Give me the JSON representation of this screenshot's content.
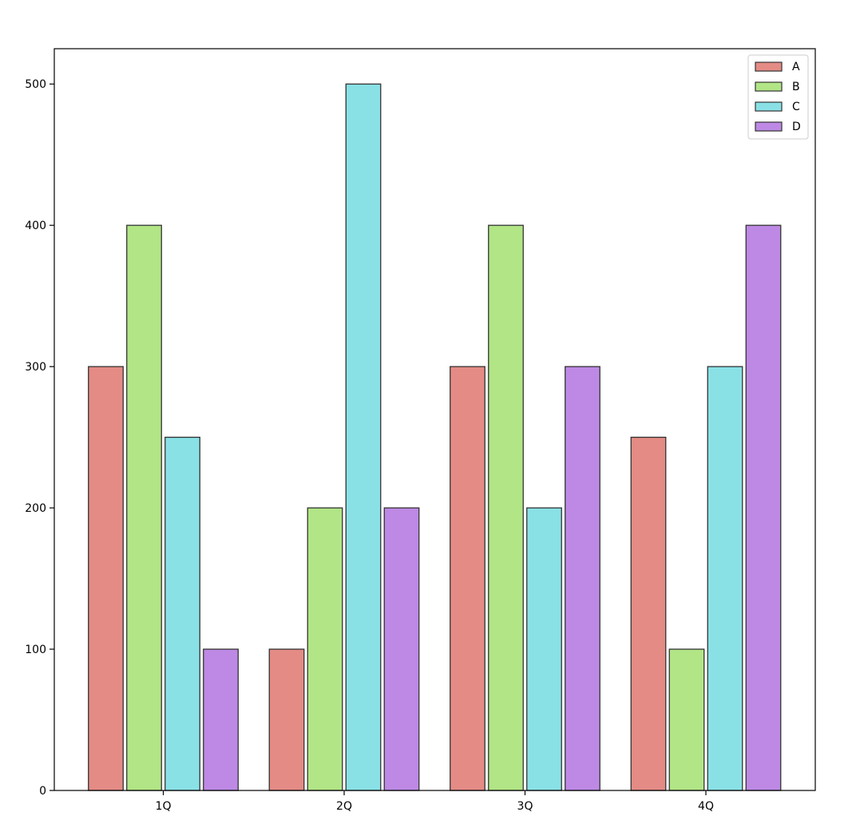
{
  "chart_data": {
    "type": "bar",
    "title": "",
    "xlabel": "",
    "ylabel": "",
    "categories": [
      "1Q",
      "2Q",
      "3Q",
      "4Q"
    ],
    "series": [
      {
        "name": "A",
        "values": [
          300,
          100,
          300,
          250
        ],
        "color": "#e48b85"
      },
      {
        "name": "B",
        "values": [
          400,
          200,
          400,
          100
        ],
        "color": "#b1e586"
      },
      {
        "name": "C",
        "values": [
          250,
          500,
          200,
          300
        ],
        "color": "#89e1e6"
      },
      {
        "name": "D",
        "values": [
          100,
          200,
          300,
          400
        ],
        "color": "#bd89e4"
      }
    ],
    "ylim": [
      0,
      525
    ],
    "yticks": [
      0,
      100,
      200,
      300,
      400,
      500
    ],
    "grid": false,
    "legend_position": "top-right",
    "bar_edge_color": "#333333"
  }
}
